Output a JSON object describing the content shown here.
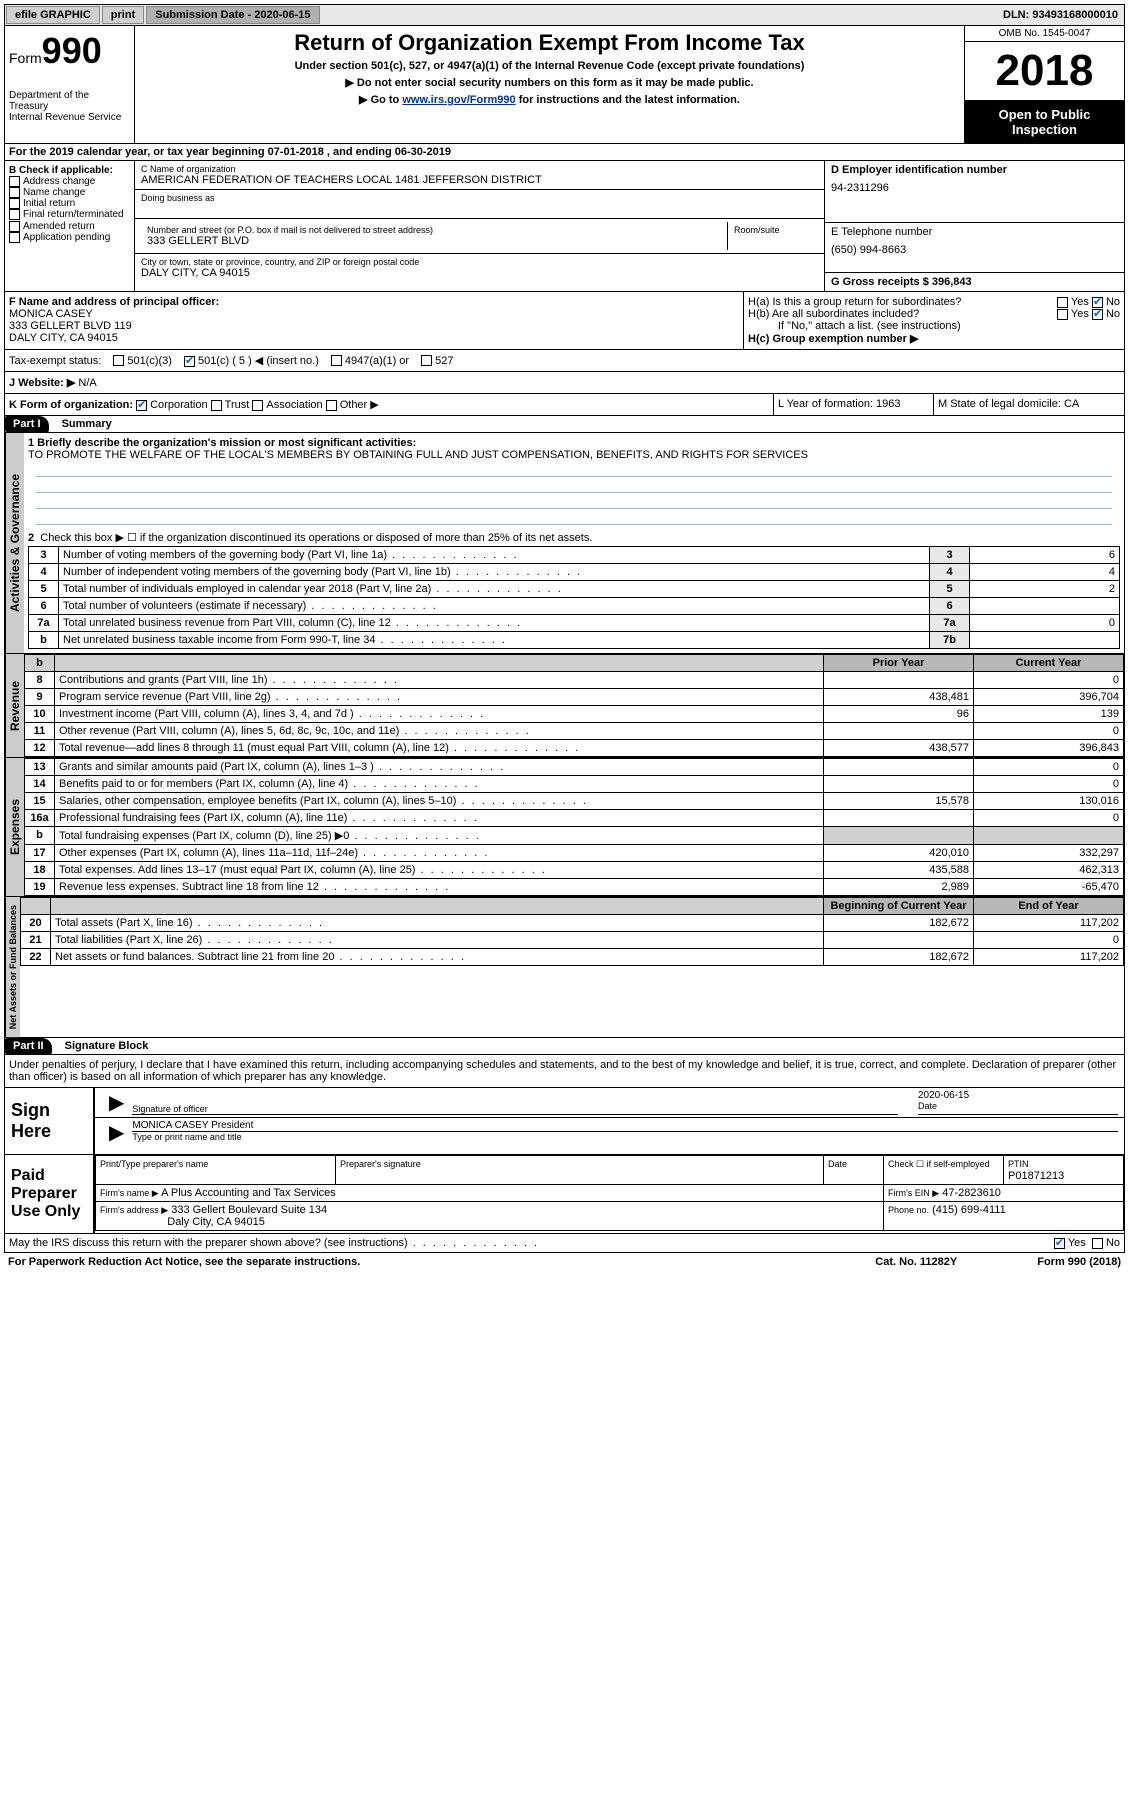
{
  "topbar": {
    "efile": "efile GRAPHIC",
    "print": "print",
    "sub_label": "Submission Date - 2020-06-15",
    "dln": "DLN: 93493168000010"
  },
  "header": {
    "form_prefix": "Form",
    "form_num": "990",
    "dept": "Department of the Treasury",
    "irs": "Internal Revenue Service",
    "title": "Return of Organization Exempt From Income Tax",
    "sub1": "Under section 501(c), 527, or 4947(a)(1) of the Internal Revenue Code (except private foundations)",
    "sub2": "Do not enter social security numbers on this form as it may be made public.",
    "sub3_pre": "Go to ",
    "sub3_link": "www.irs.gov/Form990",
    "sub3_post": " for instructions and the latest information.",
    "omb": "OMB No. 1545-0047",
    "year": "2018",
    "open": "Open to Public Inspection"
  },
  "period": {
    "a": "A",
    "text": "For the 2019 calendar year, or tax year beginning 07-01-2018    , and ending 06-30-2019"
  },
  "col_b": {
    "hdr": "B Check if applicable:",
    "o1": "Address change",
    "o2": "Name change",
    "o3": "Initial return",
    "o4": "Final return/terminated",
    "o5": "Amended return",
    "o6": "Application pending"
  },
  "col_c": {
    "name_lbl": "C Name of organization",
    "name": "AMERICAN FEDERATION OF TEACHERS LOCAL 1481 JEFFERSON DISTRICT",
    "dba_lbl": "Doing business as",
    "addr_lbl": "Number and street (or P.O. box if mail is not delivered to street address)",
    "room_lbl": "Room/suite",
    "addr": "333 GELLERT BLVD",
    "city_lbl": "City or town, state or province, country, and ZIP or foreign postal code",
    "city": "DALY CITY, CA  94015"
  },
  "col_d": {
    "ein_lbl": "D Employer identification number",
    "ein": "94-2311296",
    "tel_lbl": "E Telephone number",
    "tel": "(650) 994-8663",
    "gross_lbl": "G Gross receipts $ 396,843"
  },
  "row_f": {
    "f_lbl": "F Name and address of principal officer:",
    "f_name": "MONICA CASEY",
    "f_addr1": "333 GELLERT BLVD 119",
    "f_addr2": "DALY CITY, CA  94015",
    "ha": "H(a)  Is this a group return for subordinates?",
    "hb": "H(b)  Are all subordinates included?",
    "hb_note": "If \"No,\" attach a list. (see instructions)",
    "hc": "H(c)  Group exemption number ▶",
    "yes": "Yes",
    "no": "No"
  },
  "tax_status": {
    "lbl": "Tax-exempt status:",
    "o1": "501(c)(3)",
    "o2": "501(c) ( 5 ) ◀ (insert no.)",
    "o3": "4947(a)(1) or",
    "o4": "527"
  },
  "website": {
    "lbl": "J   Website: ▶",
    "val": "N/A"
  },
  "row_k": {
    "k": "K Form of organization:",
    "corp": "Corporation",
    "trust": "Trust",
    "assoc": "Association",
    "other": "Other ▶",
    "l": "L Year of formation: 1963",
    "m": "M State of legal domicile: CA"
  },
  "part1": {
    "hdr": "Part I",
    "title": "Summary",
    "q1": "1  Briefly describe the organization's mission or most significant activities:",
    "q1_ans": "TO PROMOTE THE WELFARE OF THE LOCAL'S MEMBERS BY OBTAINING FULL AND JUST COMPENSATION, BENEFITS, AND RIGHTS FOR SERVICES",
    "q2": "Check this box ▶ ☐  if the organization discontinued its operations or disposed of more than 25% of its net assets.",
    "tabs": {
      "act": "Activities & Governance",
      "rev": "Revenue",
      "exp": "Expenses",
      "net": "Net Assets or Fund Balances"
    },
    "rows_act": [
      {
        "n": "3",
        "d": "Number of voting members of the governing body (Part VI, line 1a)",
        "box": "3",
        "v": "6"
      },
      {
        "n": "4",
        "d": "Number of independent voting members of the governing body (Part VI, line 1b)",
        "box": "4",
        "v": "4"
      },
      {
        "n": "5",
        "d": "Total number of individuals employed in calendar year 2018 (Part V, line 2a)",
        "box": "5",
        "v": "2"
      },
      {
        "n": "6",
        "d": "Total number of volunteers (estimate if necessary)",
        "box": "6",
        "v": ""
      },
      {
        "n": "7a",
        "d": "Total unrelated business revenue from Part VIII, column (C), line 12",
        "box": "7a",
        "v": "0"
      },
      {
        "n": "b",
        "d": "Net unrelated business taxable income from Form 990-T, line 34",
        "box": "7b",
        "v": ""
      }
    ],
    "col_py": "Prior Year",
    "col_cy": "Current Year",
    "rows_rev": [
      {
        "n": "8",
        "d": "Contributions and grants (Part VIII, line 1h)",
        "py": "",
        "cy": "0"
      },
      {
        "n": "9",
        "d": "Program service revenue (Part VIII, line 2g)",
        "py": "438,481",
        "cy": "396,704"
      },
      {
        "n": "10",
        "d": "Investment income (Part VIII, column (A), lines 3, 4, and 7d )",
        "py": "96",
        "cy": "139"
      },
      {
        "n": "11",
        "d": "Other revenue (Part VIII, column (A), lines 5, 6d, 8c, 9c, 10c, and 11e)",
        "py": "",
        "cy": "0"
      },
      {
        "n": "12",
        "d": "Total revenue—add lines 8 through 11 (must equal Part VIII, column (A), line 12)",
        "py": "438,577",
        "cy": "396,843"
      }
    ],
    "rows_exp": [
      {
        "n": "13",
        "d": "Grants and similar amounts paid (Part IX, column (A), lines 1–3 )",
        "py": "",
        "cy": "0"
      },
      {
        "n": "14",
        "d": "Benefits paid to or for members (Part IX, column (A), line 4)",
        "py": "",
        "cy": "0"
      },
      {
        "n": "15",
        "d": "Salaries, other compensation, employee benefits (Part IX, column (A), lines 5–10)",
        "py": "15,578",
        "cy": "130,016"
      },
      {
        "n": "16a",
        "d": "Professional fundraising fees (Part IX, column (A), line 11e)",
        "py": "",
        "cy": "0"
      },
      {
        "n": "b",
        "d": "Total fundraising expenses (Part IX, column (D), line 25) ▶0",
        "py": "shade",
        "cy": "shade"
      },
      {
        "n": "17",
        "d": "Other expenses (Part IX, column (A), lines 11a–11d, 11f–24e)",
        "py": "420,010",
        "cy": "332,297"
      },
      {
        "n": "18",
        "d": "Total expenses. Add lines 13–17 (must equal Part IX, column (A), line 25)",
        "py": "435,588",
        "cy": "462,313"
      },
      {
        "n": "19",
        "d": "Revenue less expenses. Subtract line 18 from line 12",
        "py": "2,989",
        "cy": "-65,470"
      }
    ],
    "col_boy": "Beginning of Current Year",
    "col_eoy": "End of Year",
    "rows_net": [
      {
        "n": "20",
        "d": "Total assets (Part X, line 16)",
        "py": "182,672",
        "cy": "117,202"
      },
      {
        "n": "21",
        "d": "Total liabilities (Part X, line 26)",
        "py": "",
        "cy": "0"
      },
      {
        "n": "22",
        "d": "Net assets or fund balances. Subtract line 21 from line 20",
        "py": "182,672",
        "cy": "117,202"
      }
    ]
  },
  "part2": {
    "hdr": "Part II",
    "title": "Signature Block",
    "decl": "Under penalties of perjury, I declare that I have examined this return, including accompanying schedules and statements, and to the best of my knowledge and belief, it is true, correct, and complete. Declaration of preparer (other than officer) is based on all information of which preparer has any knowledge.",
    "sign_here": "Sign Here",
    "sig_officer": "Signature of officer",
    "date": "Date",
    "date_val": "2020-06-15",
    "name_title": "MONICA CASEY President",
    "name_title_lbl": "Type or print name and title",
    "paid": "Paid Preparer Use Only",
    "pp_name": "Print/Type preparer's name",
    "pp_sig": "Preparer's signature",
    "pp_date": "Date",
    "pp_check": "Check ☐ if self-employed",
    "ptin_lbl": "PTIN",
    "ptin": "P01871213",
    "firm_name_lbl": "Firm's name    ▶",
    "firm_name": "A Plus Accounting and Tax Services",
    "firm_ein_lbl": "Firm's EIN ▶",
    "firm_ein": "47-2823610",
    "firm_addr_lbl": "Firm's address ▶",
    "firm_addr1": "333 Gellert Boulevard Suite 134",
    "firm_addr2": "Daly City, CA  94015",
    "phone_lbl": "Phone no.",
    "phone": "(415) 699-4111",
    "discuss": "May the IRS discuss this return with the preparer shown above? (see instructions)",
    "paperwork": "For Paperwork Reduction Act Notice, see the separate instructions.",
    "cat": "Cat. No. 11282Y",
    "form_foot": "Form 990 (2018)"
  }
}
